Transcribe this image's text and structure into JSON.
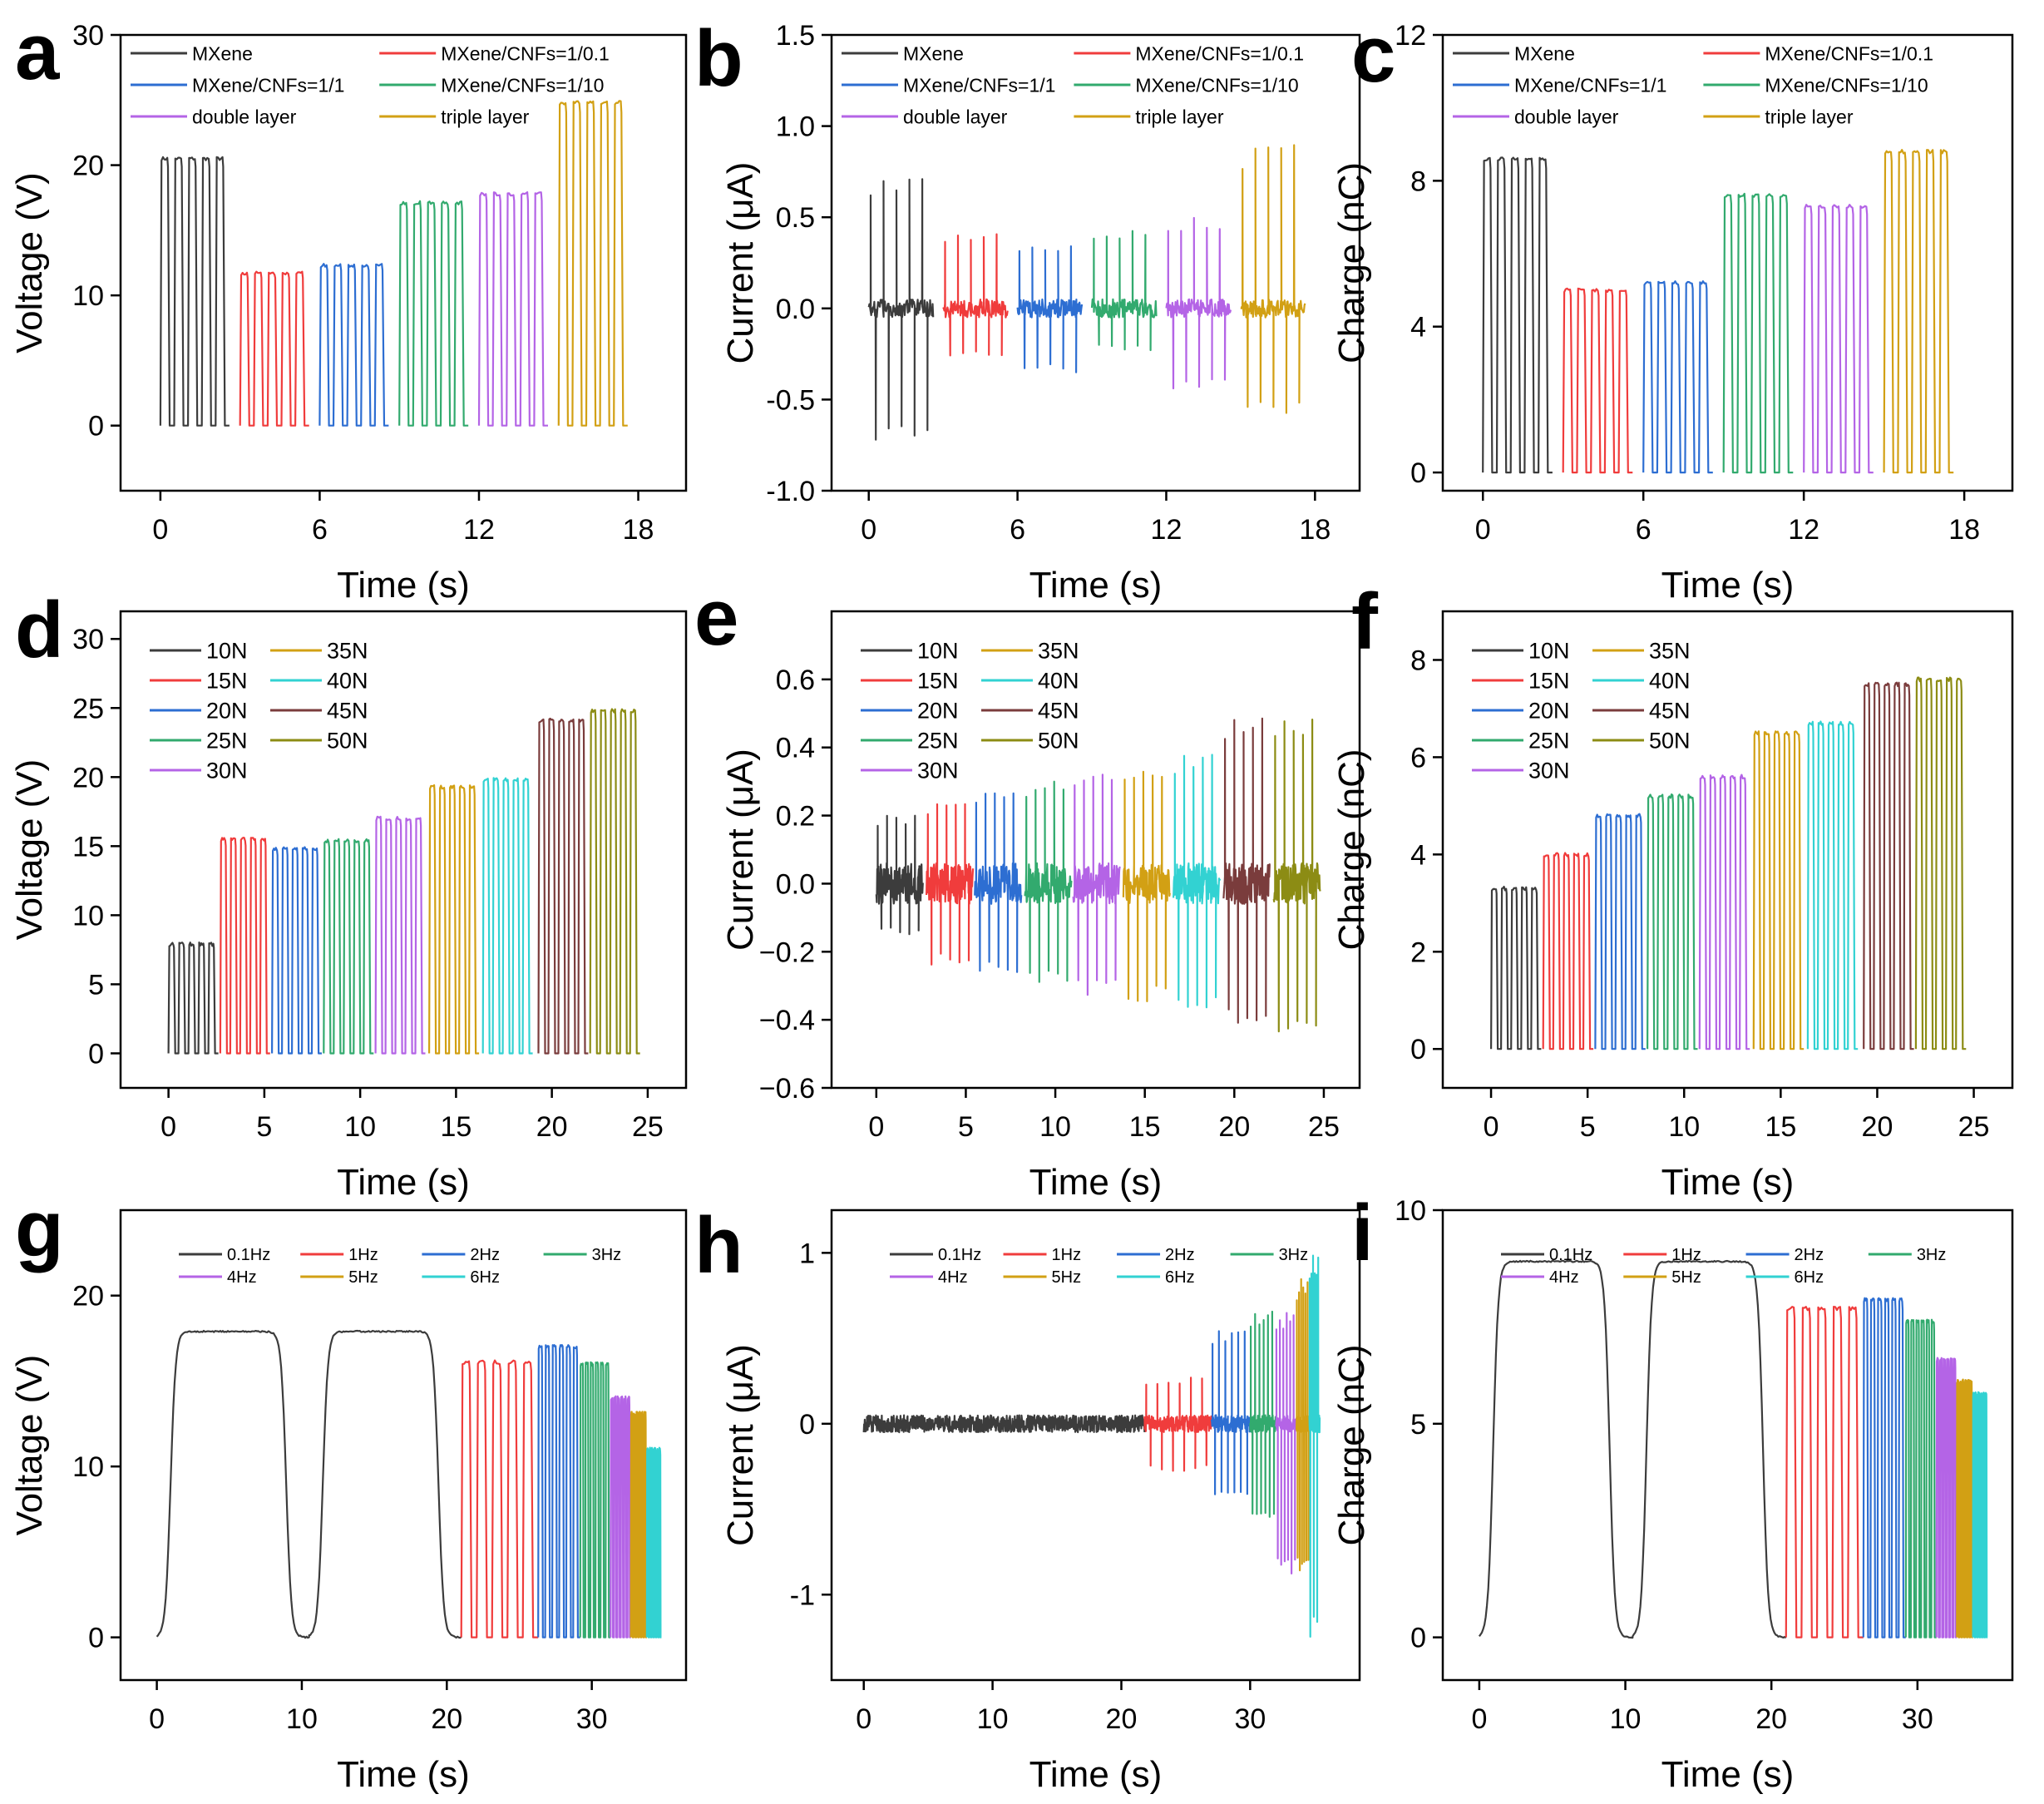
{
  "figure": {
    "description_ignored": false
  },
  "colors": {
    "black": "#3c3c3c",
    "red": "#f03c3c",
    "blue": "#2d6ed2",
    "green": "#32aa6e",
    "purple": "#b464e6",
    "gold": "#d2a014",
    "cyan": "#32d2d2",
    "brown": "#7a3c3c",
    "olive": "#8c8c14"
  },
  "chart_data": [
    {
      "panel": "a",
      "type": "line",
      "xlabel": "Time (s)",
      "ylabel": "Voltage (V)",
      "xlim": [
        -1.5,
        19.8
      ],
      "ylim": [
        -5,
        30
      ],
      "xticks": [
        0,
        6,
        12,
        18
      ],
      "yticks": [
        0,
        10,
        20,
        30
      ],
      "legend_cols": 2,
      "series": [
        {
          "name": "MXene",
          "color": "black",
          "start": 0,
          "end": 2.6,
          "cycles": 5,
          "low": 0,
          "high": 20.5,
          "shape": "square"
        },
        {
          "name": "MXene/CNFs=1/0.1",
          "color": "red",
          "start": 3,
          "end": 5.6,
          "cycles": 5,
          "low": 0,
          "high": 11.7,
          "shape": "square"
        },
        {
          "name": "MXene/CNFs=1/1",
          "color": "blue",
          "start": 6,
          "end": 8.6,
          "cycles": 5,
          "low": 0,
          "high": 12.3,
          "shape": "square"
        },
        {
          "name": "MXene/CNFs=1/10",
          "color": "green",
          "start": 9,
          "end": 11.6,
          "cycles": 5,
          "low": 0,
          "high": 17.1,
          "shape": "square"
        },
        {
          "name": "double layer",
          "color": "purple",
          "start": 12,
          "end": 14.6,
          "cycles": 5,
          "low": 0,
          "high": 17.8,
          "shape": "square"
        },
        {
          "name": "triple layer",
          "color": "gold",
          "start": 15,
          "end": 17.6,
          "cycles": 5,
          "low": 0,
          "high": 24.8,
          "shape": "square"
        }
      ]
    },
    {
      "panel": "b",
      "type": "line",
      "xlabel": "Time (s)",
      "ylabel": "Current (μA)",
      "xlim": [
        -1.5,
        19.8
      ],
      "ylim": [
        -1.0,
        1.5
      ],
      "xticks": [
        0,
        6,
        12,
        18
      ],
      "yticks": [
        -1.0,
        -0.5,
        0.0,
        0.5,
        1.0,
        1.5
      ],
      "ytick_labels": [
        "-1.0",
        "-0.5",
        "0.0",
        "0.5",
        "1.0",
        "1.5"
      ],
      "legend_cols": 2,
      "series": [
        {
          "name": "MXene",
          "color": "black",
          "start": 0,
          "end": 2.6,
          "cycles": 5,
          "high": 0.73,
          "low": -0.72,
          "noise": 0.05,
          "shape": "spike"
        },
        {
          "name": "MXene/CNFs=1/0.1",
          "color": "red",
          "start": 3,
          "end": 5.6,
          "cycles": 5,
          "high": 0.43,
          "low": -0.27,
          "noise": 0.05,
          "shape": "spike"
        },
        {
          "name": "MXene/CNFs=1/1",
          "color": "blue",
          "start": 6,
          "end": 8.6,
          "cycles": 5,
          "high": 0.37,
          "low": -0.36,
          "noise": 0.05,
          "shape": "spike"
        },
        {
          "name": "MXene/CNFs=1/10",
          "color": "green",
          "start": 9,
          "end": 11.6,
          "cycles": 5,
          "high": 0.45,
          "low": -0.23,
          "noise": 0.05,
          "shape": "spike"
        },
        {
          "name": "double layer",
          "color": "purple",
          "start": 12,
          "end": 14.6,
          "cycles": 5,
          "high": 0.5,
          "low": -0.45,
          "noise": 0.05,
          "shape": "spike"
        },
        {
          "name": "triple layer",
          "color": "gold",
          "start": 15,
          "end": 17.6,
          "cycles": 5,
          "high": 0.9,
          "low": -0.58,
          "noise": 0.05,
          "shape": "spike"
        }
      ]
    },
    {
      "panel": "c",
      "type": "line",
      "xlabel": "Time (s)",
      "ylabel": "Charge (nC)",
      "xlim": [
        -1.5,
        19.8
      ],
      "ylim": [
        -0.5,
        12
      ],
      "xticks": [
        0,
        6,
        12,
        18
      ],
      "yticks": [
        0,
        4,
        8,
        12
      ],
      "legend_cols": 2,
      "series": [
        {
          "name": "MXene",
          "color": "black",
          "start": 0,
          "end": 2.6,
          "cycles": 5,
          "low": 0,
          "high": 8.6,
          "shape": "square"
        },
        {
          "name": "MXene/CNFs=1/0.1",
          "color": "red",
          "start": 3,
          "end": 5.6,
          "cycles": 5,
          "low": 0,
          "high": 5.0,
          "shape": "square"
        },
        {
          "name": "MXene/CNFs=1/1",
          "color": "blue",
          "start": 6,
          "end": 8.6,
          "cycles": 5,
          "low": 0,
          "high": 5.2,
          "shape": "square"
        },
        {
          "name": "MXene/CNFs=1/10",
          "color": "green",
          "start": 9,
          "end": 11.6,
          "cycles": 5,
          "low": 0,
          "high": 7.6,
          "shape": "square"
        },
        {
          "name": "double layer",
          "color": "purple",
          "start": 12,
          "end": 14.6,
          "cycles": 5,
          "low": 0,
          "high": 7.3,
          "shape": "square"
        },
        {
          "name": "triple layer",
          "color": "gold",
          "start": 15,
          "end": 17.6,
          "cycles": 5,
          "low": 0,
          "high": 8.8,
          "shape": "square"
        }
      ]
    },
    {
      "panel": "d",
      "type": "line",
      "xlabel": "Time (s)",
      "ylabel": "Voltage (V)",
      "xlim": [
        -2.5,
        27
      ],
      "ylim": [
        -2.5,
        32
      ],
      "xticks": [
        0,
        5,
        10,
        15,
        20,
        25
      ],
      "yticks": [
        0,
        5,
        10,
        15,
        20,
        25,
        30
      ],
      "legend_cols": 2,
      "series": [
        {
          "name": "10N",
          "color": "black",
          "start": 0,
          "end": 2.6,
          "cycles": 5,
          "low": 0,
          "high": 7.9,
          "shape": "square"
        },
        {
          "name": "15N",
          "color": "red",
          "start": 2.7,
          "end": 5.3,
          "cycles": 5,
          "low": 0,
          "high": 15.5,
          "shape": "square"
        },
        {
          "name": "20N",
          "color": "blue",
          "start": 5.4,
          "end": 8.0,
          "cycles": 5,
          "low": 0,
          "high": 14.8,
          "shape": "square"
        },
        {
          "name": "25N",
          "color": "green",
          "start": 8.1,
          "end": 10.7,
          "cycles": 5,
          "low": 0,
          "high": 15.4,
          "shape": "square"
        },
        {
          "name": "30N",
          "color": "purple",
          "start": 10.8,
          "end": 13.4,
          "cycles": 5,
          "low": 0,
          "high": 17.0,
          "shape": "square"
        },
        {
          "name": "35N",
          "color": "gold",
          "start": 13.6,
          "end": 16.2,
          "cycles": 5,
          "low": 0,
          "high": 19.3,
          "shape": "square"
        },
        {
          "name": "40N",
          "color": "cyan",
          "start": 16.4,
          "end": 19.0,
          "cycles": 5,
          "low": 0,
          "high": 19.8,
          "shape": "square"
        },
        {
          "name": "45N",
          "color": "brown",
          "start": 19.3,
          "end": 21.9,
          "cycles": 5,
          "low": 0,
          "high": 24.1,
          "shape": "square"
        },
        {
          "name": "50N",
          "color": "olive",
          "start": 22.0,
          "end": 24.6,
          "cycles": 5,
          "low": 0,
          "high": 24.8,
          "shape": "square"
        }
      ],
      "legend_order": [
        "10N",
        "35N",
        "15N",
        "40N",
        "20N",
        "45N",
        "25N",
        "50N",
        "30N"
      ]
    },
    {
      "panel": "e",
      "type": "line",
      "xlabel": "Time (s)",
      "ylabel": "Current (μA)",
      "xlim": [
        -2.5,
        27
      ],
      "ylim": [
        -0.6,
        0.8
      ],
      "xticks": [
        0,
        5,
        10,
        15,
        20,
        25
      ],
      "yticks": [
        -0.6,
        -0.4,
        -0.2,
        0.0,
        0.2,
        0.4,
        0.6
      ],
      "ytick_labels": [
        "−0.6",
        "−0.4",
        "−0.2",
        "0.0",
        "0.2",
        "0.4",
        "0.6"
      ],
      "legend_cols": 2,
      "series": [
        {
          "name": "10N",
          "color": "black",
          "start": 0,
          "end": 2.6,
          "cycles": 5,
          "high": 0.2,
          "low": -0.15,
          "noise": 0.06,
          "shape": "spike"
        },
        {
          "name": "15N",
          "color": "red",
          "start": 2.8,
          "end": 5.4,
          "cycles": 5,
          "high": 0.24,
          "low": -0.24,
          "noise": 0.06,
          "shape": "spike"
        },
        {
          "name": "20N",
          "color": "blue",
          "start": 5.5,
          "end": 8.1,
          "cycles": 5,
          "high": 0.28,
          "low": -0.27,
          "noise": 0.06,
          "shape": "spike"
        },
        {
          "name": "25N",
          "color": "green",
          "start": 8.3,
          "end": 10.9,
          "cycles": 5,
          "high": 0.3,
          "low": -0.29,
          "noise": 0.06,
          "shape": "spike"
        },
        {
          "name": "30N",
          "color": "purple",
          "start": 11.0,
          "end": 13.6,
          "cycles": 5,
          "high": 0.34,
          "low": -0.33,
          "noise": 0.06,
          "shape": "spike"
        },
        {
          "name": "35N",
          "color": "gold",
          "start": 13.8,
          "end": 16.4,
          "cycles": 5,
          "high": 0.36,
          "low": -0.35,
          "noise": 0.06,
          "shape": "spike"
        },
        {
          "name": "40N",
          "color": "cyan",
          "start": 16.6,
          "end": 19.2,
          "cycles": 5,
          "high": 0.38,
          "low": -0.37,
          "noise": 0.06,
          "shape": "spike"
        },
        {
          "name": "45N",
          "color": "brown",
          "start": 19.4,
          "end": 22.0,
          "cycles": 5,
          "high": 0.5,
          "low": -0.42,
          "noise": 0.06,
          "shape": "spike"
        },
        {
          "name": "50N",
          "color": "olive",
          "start": 22.2,
          "end": 24.8,
          "cycles": 5,
          "high": 0.51,
          "low": -0.44,
          "noise": 0.06,
          "shape": "spike"
        }
      ],
      "legend_order": [
        "10N",
        "35N",
        "15N",
        "40N",
        "20N",
        "45N",
        "25N",
        "50N",
        "30N"
      ]
    },
    {
      "panel": "f",
      "type": "line",
      "xlabel": "Time (s)",
      "ylabel": "Charge (nC)",
      "xlim": [
        -2.5,
        27
      ],
      "ylim": [
        -0.8,
        9
      ],
      "xticks": [
        0,
        5,
        10,
        15,
        20,
        25
      ],
      "yticks": [
        0,
        2,
        4,
        6,
        8
      ],
      "legend_cols": 2,
      "series": [
        {
          "name": "10N",
          "color": "black",
          "start": 0,
          "end": 2.6,
          "cycles": 5,
          "low": 0,
          "high": 3.3,
          "shape": "square"
        },
        {
          "name": "15N",
          "color": "red",
          "start": 2.7,
          "end": 5.3,
          "cycles": 5,
          "low": 0,
          "high": 4.0,
          "shape": "square"
        },
        {
          "name": "20N",
          "color": "blue",
          "start": 5.4,
          "end": 8.0,
          "cycles": 5,
          "low": 0,
          "high": 4.8,
          "shape": "square"
        },
        {
          "name": "25N",
          "color": "green",
          "start": 8.1,
          "end": 10.7,
          "cycles": 5,
          "low": 0,
          "high": 5.2,
          "shape": "square"
        },
        {
          "name": "30N",
          "color": "purple",
          "start": 10.8,
          "end": 13.4,
          "cycles": 5,
          "low": 0,
          "high": 5.6,
          "shape": "square"
        },
        {
          "name": "35N",
          "color": "gold",
          "start": 13.6,
          "end": 16.2,
          "cycles": 5,
          "low": 0,
          "high": 6.5,
          "shape": "square"
        },
        {
          "name": "40N",
          "color": "cyan",
          "start": 16.4,
          "end": 19.0,
          "cycles": 5,
          "low": 0,
          "high": 6.7,
          "shape": "square"
        },
        {
          "name": "45N",
          "color": "brown",
          "start": 19.3,
          "end": 21.9,
          "cycles": 5,
          "low": 0,
          "high": 7.5,
          "shape": "square"
        },
        {
          "name": "50N",
          "color": "olive",
          "start": 22.0,
          "end": 24.6,
          "cycles": 5,
          "low": 0,
          "high": 7.6,
          "shape": "square"
        }
      ],
      "legend_order": [
        "10N",
        "35N",
        "15N",
        "40N",
        "20N",
        "45N",
        "25N",
        "50N",
        "30N"
      ]
    },
    {
      "panel": "g",
      "type": "line",
      "xlabel": "Time (s)",
      "ylabel": "Voltage (V)",
      "xlim": [
        -2.5,
        36.5
      ],
      "ylim": [
        -2.5,
        25
      ],
      "xticks": [
        0,
        10,
        20,
        30
      ],
      "yticks": [
        0,
        10,
        20
      ],
      "legend_cols": 4,
      "series": [
        {
          "name": "0.1Hz",
          "color": "black",
          "start": 0,
          "end": 21,
          "cycles": 2,
          "low": 0,
          "high": 17.9,
          "shape": "slow"
        },
        {
          "name": "1Hz",
          "color": "red",
          "start": 21,
          "end": 26.3,
          "cycles": 5,
          "low": 0,
          "high": 16.1,
          "shape": "square"
        },
        {
          "name": "2Hz",
          "color": "blue",
          "start": 26.3,
          "end": 29.2,
          "cycles": 6,
          "low": 0,
          "high": 17.0,
          "shape": "square"
        },
        {
          "name": "3Hz",
          "color": "green",
          "start": 29.2,
          "end": 31.3,
          "cycles": 6,
          "low": 0,
          "high": 16.0,
          "shape": "square"
        },
        {
          "name": "4Hz",
          "color": "purple",
          "start": 31.3,
          "end": 32.7,
          "cycles": 6,
          "low": 0,
          "high": 14.0,
          "shape": "square"
        },
        {
          "name": "5Hz",
          "color": "gold",
          "start": 32.7,
          "end": 33.8,
          "cycles": 6,
          "low": 0,
          "high": 13.1,
          "shape": "square"
        },
        {
          "name": "6Hz",
          "color": "cyan",
          "start": 33.8,
          "end": 34.8,
          "cycles": 6,
          "low": 0,
          "high": 11.0,
          "shape": "square"
        }
      ]
    },
    {
      "panel": "h",
      "type": "line",
      "xlabel": "Time (s)",
      "ylabel": "Current (μA)",
      "xlim": [
        -2.5,
        38.5
      ],
      "ylim": [
        -1.5,
        1.25
      ],
      "xticks": [
        0,
        10,
        20,
        30
      ],
      "yticks": [
        -1,
        0,
        1
      ],
      "ytick_labels": [
        "-1",
        "0",
        "1"
      ],
      "legend_cols": 4,
      "series": [
        {
          "name": "0.1Hz",
          "color": "black",
          "start": 0,
          "end": 21.8,
          "cycles": 0,
          "high": 0,
          "low": 0,
          "noise": 0.05,
          "shape": "spike"
        },
        {
          "name": "1Hz",
          "color": "red",
          "start": 21.8,
          "end": 27.0,
          "cycles": 6,
          "high": 0.27,
          "low": -0.28,
          "noise": 0.05,
          "shape": "spike"
        },
        {
          "name": "2Hz",
          "color": "blue",
          "start": 27.0,
          "end": 30.0,
          "cycles": 6,
          "high": 0.55,
          "low": -0.42,
          "noise": 0.05,
          "shape": "spike"
        },
        {
          "name": "3Hz",
          "color": "green",
          "start": 30.0,
          "end": 32.0,
          "cycles": 6,
          "high": 0.67,
          "low": -0.56,
          "noise": 0.05,
          "shape": "spike"
        },
        {
          "name": "4Hz",
          "color": "purple",
          "start": 32.0,
          "end": 33.6,
          "cycles": 6,
          "high": 0.65,
          "low": -0.88,
          "noise": 0.05,
          "shape": "spike"
        },
        {
          "name": "5Hz",
          "color": "gold",
          "start": 33.6,
          "end": 34.6,
          "cycles": 6,
          "high": 0.85,
          "low": -0.92,
          "noise": 0.05,
          "shape": "spike"
        },
        {
          "name": "6Hz",
          "color": "cyan",
          "start": 34.6,
          "end": 35.4,
          "cycles": 6,
          "high": 1.0,
          "low": -1.3,
          "noise": 0.05,
          "shape": "spike"
        }
      ]
    },
    {
      "panel": "i",
      "type": "line",
      "xlabel": "Time (s)",
      "ylabel": "Charge (nC)",
      "xlim": [
        -2.5,
        36.5
      ],
      "ylim": [
        -1,
        10
      ],
      "xticks": [
        0,
        10,
        20,
        30
      ],
      "yticks": [
        0,
        5,
        10
      ],
      "legend_cols": 4,
      "series": [
        {
          "name": "0.1Hz",
          "color": "black",
          "start": 0,
          "end": 21,
          "cycles": 2,
          "low": 0,
          "high": 8.8,
          "shape": "slow"
        },
        {
          "name": "1Hz",
          "color": "red",
          "start": 21,
          "end": 26.3,
          "cycles": 5,
          "low": 0,
          "high": 7.7,
          "shape": "square"
        },
        {
          "name": "2Hz",
          "color": "blue",
          "start": 26.3,
          "end": 29.2,
          "cycles": 6,
          "low": 0,
          "high": 7.9,
          "shape": "square"
        },
        {
          "name": "3Hz",
          "color": "green",
          "start": 29.2,
          "end": 31.3,
          "cycles": 6,
          "low": 0,
          "high": 7.4,
          "shape": "square"
        },
        {
          "name": "4Hz",
          "color": "purple",
          "start": 31.3,
          "end": 32.7,
          "cycles": 6,
          "low": 0,
          "high": 6.5,
          "shape": "square"
        },
        {
          "name": "5Hz",
          "color": "gold",
          "start": 32.7,
          "end": 33.8,
          "cycles": 6,
          "low": 0,
          "high": 6.0,
          "shape": "square"
        },
        {
          "name": "6Hz",
          "color": "cyan",
          "start": 33.8,
          "end": 34.8,
          "cycles": 6,
          "low": 0,
          "high": 5.7,
          "shape": "square"
        }
      ]
    }
  ]
}
